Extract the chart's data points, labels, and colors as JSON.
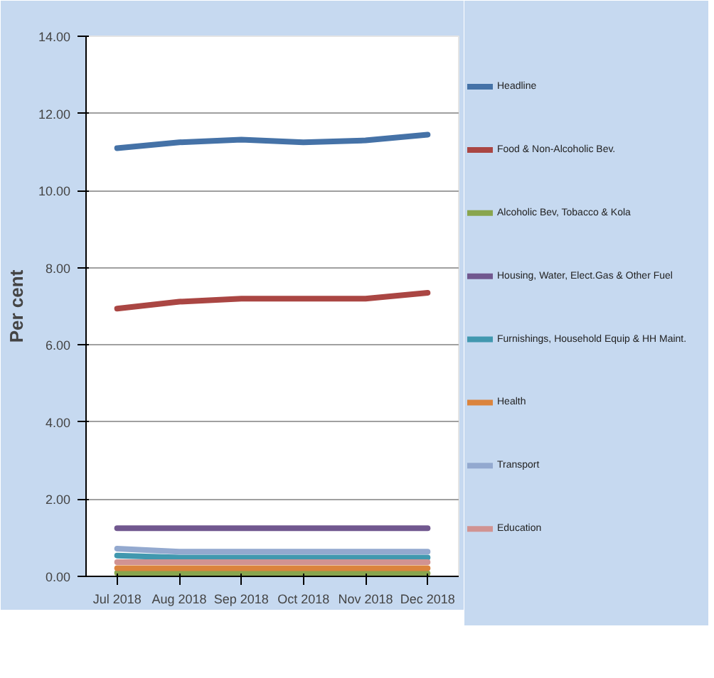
{
  "chart_data": {
    "type": "line",
    "ylabel": "Per cent",
    "categories": [
      "Jul 2018",
      "Aug 2018",
      "Sep 2018",
      "Oct 2018",
      "Nov 2018",
      "Dec 2018"
    ],
    "ylim": [
      0,
      14
    ],
    "yticks": [
      {
        "value": 0,
        "label": "0.00"
      },
      {
        "value": 2,
        "label": "2.00"
      },
      {
        "value": 4,
        "label": "4.00"
      },
      {
        "value": 6,
        "label": "6.00"
      },
      {
        "value": 8,
        "label": "8.00"
      },
      {
        "value": 10,
        "label": "10.00"
      },
      {
        "value": 12,
        "label": "12.00"
      },
      {
        "value": 14,
        "label": "14.00"
      }
    ],
    "grid": "y",
    "legend": "right",
    "marker": "none",
    "line_style": "solid",
    "series": [
      {
        "name": "Headline",
        "color": "#4572a7",
        "values": [
          11.1,
          11.25,
          11.32,
          11.25,
          11.3,
          11.45
        ]
      },
      {
        "name": "Food & Non-Alcoholic Bev.",
        "color": "#aa4643",
        "values": [
          6.94,
          7.12,
          7.2,
          7.2,
          7.2,
          7.35
        ]
      },
      {
        "name": "Alcoholic Bev, Tobacco & Kola",
        "color": "#89a54e",
        "values": [
          0.09,
          0.08,
          0.08,
          0.08,
          0.08,
          0.08
        ]
      },
      {
        "name": "Housing, Water, Elect.Gas & Other Fuel",
        "color": "#71588f",
        "values": [
          1.25,
          1.25,
          1.25,
          1.25,
          1.25,
          1.25
        ]
      },
      {
        "name": "Furnishings, Household Equip & HH Maint.",
        "color": "#4198af",
        "values": [
          0.54,
          0.49,
          0.49,
          0.49,
          0.49,
          0.49
        ]
      },
      {
        "name": "Health",
        "color": "#db843d",
        "values": [
          0.21,
          0.21,
          0.21,
          0.21,
          0.21,
          0.21
        ]
      },
      {
        "name": "Transport",
        "color": "#93a9cf",
        "values": [
          0.72,
          0.64,
          0.64,
          0.64,
          0.64,
          0.64
        ]
      },
      {
        "name": "Education",
        "color": "#d19392",
        "values": [
          0.37,
          0.37,
          0.37,
          0.37,
          0.37,
          0.37
        ]
      }
    ]
  }
}
